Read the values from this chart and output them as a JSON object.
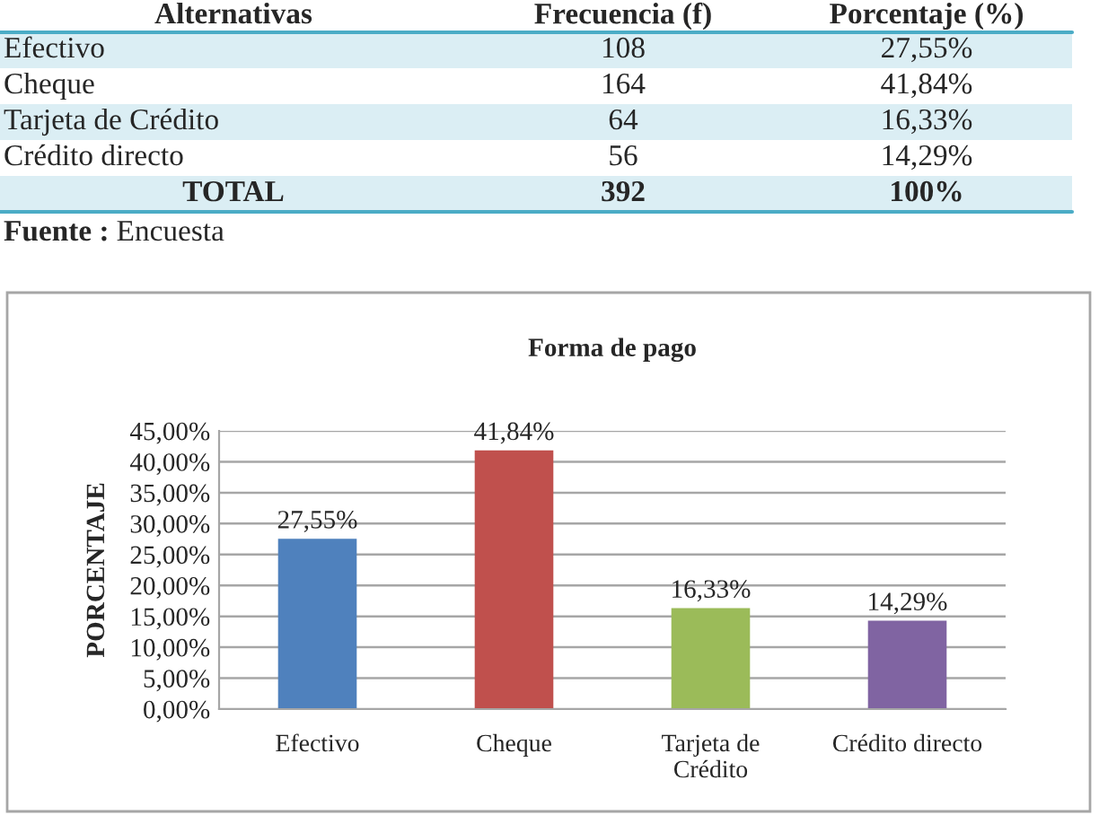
{
  "chart_data": [
    {
      "type": "other",
      "xlabel": "Alternativas",
      "categories": [
        "Efectivo",
        "Cheque",
        "Tarjeta de Crédito",
        "Crédito directo",
        "TOTAL"
      ],
      "series": [
        {
          "name": "Frecuencia (f)",
          "values": [
            108,
            164,
            64,
            56,
            392
          ],
          "value_labels": [
            "108",
            "164",
            "64",
            "56",
            "392"
          ]
        },
        {
          "name": "Porcentaje (%)",
          "values": [
            27.55,
            41.84,
            16.33,
            14.29,
            100
          ],
          "value_labels": [
            "27,55%",
            "41,84%",
            "16,33%",
            "14,29%",
            "100%"
          ]
        }
      ],
      "annotations": [
        "Fuente : Encuesta"
      ]
    },
    {
      "type": "bar",
      "title": "Forma de pago",
      "ylabel": "PORCENTAJE",
      "categories": [
        "Efectivo",
        "Cheque",
        "Tarjeta de\nCrédito",
        "Crédito directo"
      ],
      "values": [
        27.55,
        41.84,
        16.33,
        14.29
      ],
      "colors": [
        "#4f81bd",
        "#c0504d",
        "#9bbb59",
        "#8064a2"
      ],
      "value_labels": [
        "27,55%",
        "41,84%",
        "16,33%",
        "14,29%"
      ],
      "ylim": [
        0,
        45
      ],
      "yticks": [
        {
          "value": 0,
          "label": "0,00%"
        },
        {
          "value": 5,
          "label": "5,00%"
        },
        {
          "value": 10,
          "label": "10,00%"
        },
        {
          "value": 15,
          "label": "15,00%"
        },
        {
          "value": 20,
          "label": "20,00%"
        },
        {
          "value": 25,
          "label": "25,00%"
        },
        {
          "value": 30,
          "label": "30,00%"
        },
        {
          "value": 35,
          "label": "35,00%"
        },
        {
          "value": 40,
          "label": "40,00%"
        },
        {
          "value": 45,
          "label": "45,00%"
        }
      ],
      "grid": "y"
    }
  ]
}
